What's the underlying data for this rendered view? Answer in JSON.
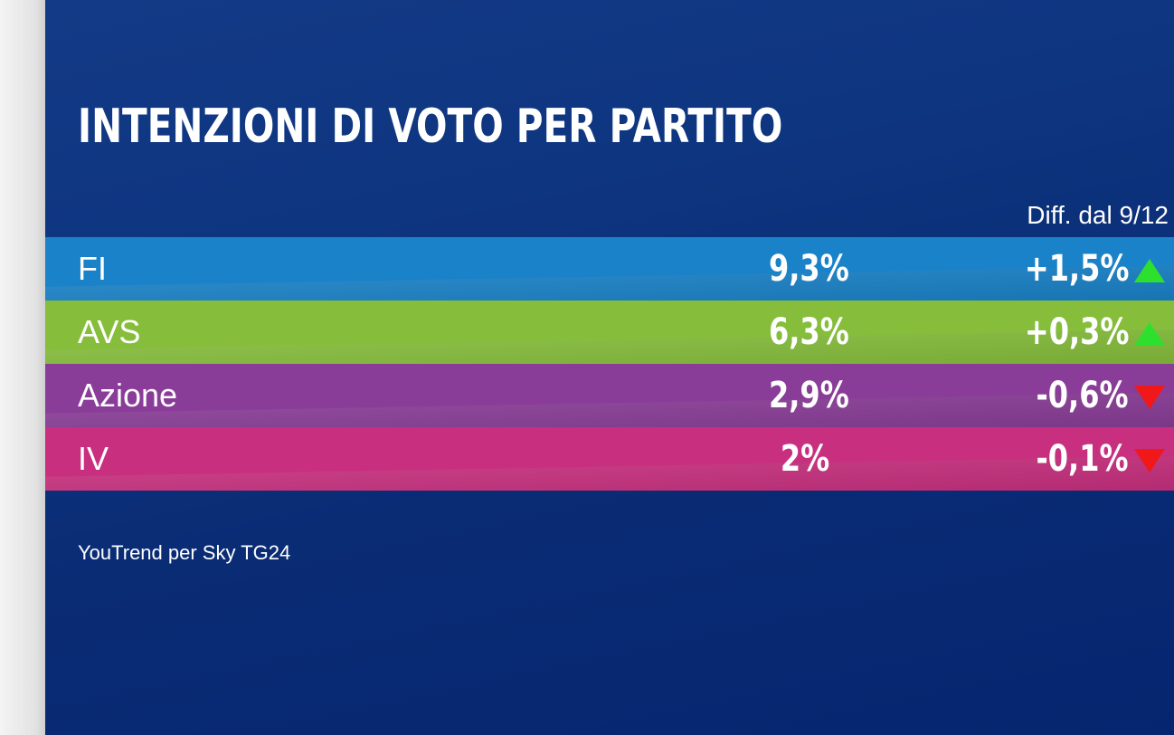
{
  "title": "INTENZIONI DI VOTO PER PARTITO",
  "diff_header": "Diff. dal 9/12",
  "source": "YouTrend per Sky TG24",
  "colors": {
    "background": "#0b2d7a",
    "up_arrow": "#2ee02e",
    "down_arrow": "#f01818"
  },
  "rows": [
    {
      "party": "FI",
      "value": "9,3%",
      "delta": "+1,5%",
      "direction": "up",
      "color": "#1a82c8"
    },
    {
      "party": "AVS",
      "value": "6,3%",
      "delta": "+0,3%",
      "direction": "up",
      "color": "#86be3c"
    },
    {
      "party": "Azione",
      "value": "2,9%",
      "delta": "-0,6%",
      "direction": "down",
      "color": "#8a3d98"
    },
    {
      "party": "IV",
      "value": "2%",
      "delta": "-0,1%",
      "direction": "down",
      "color": "#c8307f"
    }
  ],
  "chart_data": {
    "type": "table",
    "title": "INTENZIONI DI VOTO PER PARTITO",
    "columns": [
      "",
      "",
      "Diff. dal 9/12"
    ],
    "categories": [
      "FI",
      "AVS",
      "Azione",
      "IV"
    ],
    "values": [
      9.3,
      6.3,
      2.9,
      2
    ],
    "diff": [
      1.5,
      0.3,
      -0.6,
      -0.1
    ],
    "source": "YouTrend per Sky TG24"
  }
}
